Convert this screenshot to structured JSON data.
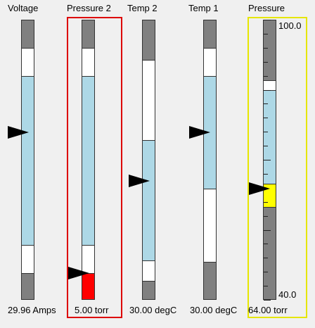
{
  "gauges": [
    {
      "title": "Voltage",
      "value_text": "29.96 Amps",
      "selected": false
    },
    {
      "title": "Pressure 2",
      "value_text": "5.00 torr",
      "selected": true
    },
    {
      "title": "Temp 2",
      "value_text": "30.00 degC",
      "selected": false
    },
    {
      "title": "Temp 1",
      "value_text": "30.00 degC",
      "selected": false
    },
    {
      "title": "Pressure",
      "value_text": "64.00 torr",
      "selected": false,
      "highlighted": true,
      "scale": {
        "max_label": "100.0",
        "min_label": "40.0",
        "value": 64.0
      }
    }
  ],
  "colors": {
    "alarm_band": "#808080",
    "warning_band": "#ffffff",
    "normal_band": "#add8e6",
    "alarm_fill": "#ff0000",
    "value_fill": "#ffff00",
    "selected_frame": "#dd0000",
    "highlight_frame": "#e6e600",
    "pointer": "#000000"
  }
}
